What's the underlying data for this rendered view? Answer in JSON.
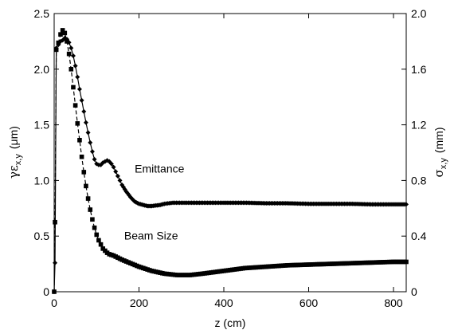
{
  "chart_data": {
    "type": "line",
    "xlabel": "z (cm)",
    "ylabel_left": {
      "symbol": "γε",
      "sub": "x,y",
      "unit": "(μm)"
    },
    "ylabel_right": {
      "symbol": "σ",
      "sub": "x,y",
      "unit": "(mm)"
    },
    "xlim": [
      0,
      830
    ],
    "ylim_left": [
      0,
      2.5
    ],
    "ylim_right": [
      0,
      2.0
    ],
    "x_ticks": [
      "0",
      "200",
      "400",
      "600",
      "800"
    ],
    "y_left_ticks": [
      "0",
      "0.5",
      "1.0",
      "1.5",
      "2.0",
      "2.5"
    ],
    "y_right_ticks": [
      "0",
      "0.4",
      "0.8",
      "1.2",
      "1.6",
      "2.0"
    ],
    "grid": false,
    "series": [
      {
        "name": "Emittance",
        "axis": "left",
        "marker": "diamond",
        "line": "solid",
        "x": [
          0,
          2,
          5,
          10,
          15,
          20,
          25,
          30,
          35,
          40,
          45,
          50,
          55,
          60,
          65,
          70,
          75,
          80,
          85,
          90,
          95,
          100,
          105,
          110,
          115,
          120,
          125,
          130,
          135,
          140,
          145,
          150,
          155,
          160,
          170,
          180,
          190,
          200,
          210,
          220,
          230,
          240,
          250,
          260,
          280,
          300,
          320,
          350,
          380,
          400,
          450,
          500,
          550,
          600,
          650,
          700,
          750,
          800,
          830
        ],
        "y": [
          0.0,
          0.26,
          2.19,
          2.22,
          2.25,
          2.26,
          2.28,
          2.27,
          2.24,
          2.19,
          2.12,
          2.03,
          1.93,
          1.82,
          1.72,
          1.62,
          1.52,
          1.43,
          1.34,
          1.26,
          1.19,
          1.15,
          1.14,
          1.14,
          1.16,
          1.17,
          1.18,
          1.17,
          1.15,
          1.12,
          1.08,
          1.04,
          1.0,
          0.96,
          0.9,
          0.85,
          0.81,
          0.79,
          0.78,
          0.77,
          0.77,
          0.775,
          0.78,
          0.79,
          0.8,
          0.8,
          0.8,
          0.8,
          0.8,
          0.8,
          0.8,
          0.795,
          0.795,
          0.79,
          0.79,
          0.79,
          0.785,
          0.785,
          0.785
        ]
      },
      {
        "name": "Beam Size",
        "axis": "right",
        "marker": "square",
        "line": "dashed",
        "x": [
          0,
          2,
          5,
          10,
          15,
          20,
          25,
          30,
          35,
          40,
          45,
          50,
          55,
          60,
          65,
          70,
          75,
          80,
          85,
          90,
          95,
          100,
          105,
          110,
          115,
          120,
          125,
          130,
          135,
          140,
          150,
          160,
          180,
          200,
          230,
          260,
          290,
          320,
          350,
          400,
          450,
          500,
          550,
          600,
          650,
          700,
          750,
          800,
          830
        ],
        "y": [
          0.0,
          0.5,
          1.74,
          1.79,
          1.85,
          1.88,
          1.86,
          1.8,
          1.71,
          1.6,
          1.47,
          1.34,
          1.21,
          1.09,
          0.97,
          0.86,
          0.76,
          0.67,
          0.59,
          0.52,
          0.46,
          0.41,
          0.37,
          0.34,
          0.31,
          0.295,
          0.28,
          0.27,
          0.265,
          0.26,
          0.245,
          0.23,
          0.205,
          0.18,
          0.15,
          0.13,
          0.12,
          0.12,
          0.13,
          0.15,
          0.17,
          0.18,
          0.19,
          0.195,
          0.2,
          0.205,
          0.21,
          0.215,
          0.215
        ]
      }
    ],
    "annotations": [
      {
        "text": "Emittance",
        "x": 190,
        "y_left": 1.07
      },
      {
        "text": "Beam Size",
        "x": 165,
        "y_left": 0.47
      }
    ]
  }
}
